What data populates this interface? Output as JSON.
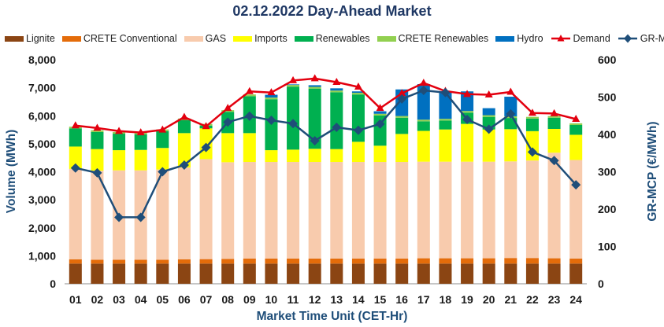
{
  "chart_data": {
    "type": "bar",
    "title": "02.12.2022  Day-Ahead Market",
    "xlabel": "Market Time Unit (CET-Hr)",
    "ylabel": "Volume (MWh)",
    "y2label": "GR-MCP (€/MWh)",
    "ylim": [
      0,
      8000
    ],
    "y2lim": [
      0,
      600
    ],
    "yticks": [
      "0",
      "1,000",
      "2,000",
      "3,000",
      "4,000",
      "5,000",
      "6,000",
      "7,000",
      "8,000"
    ],
    "y2ticks": [
      "0",
      "100",
      "200",
      "300",
      "400",
      "500",
      "600"
    ],
    "categories": [
      "01",
      "02",
      "03",
      "04",
      "05",
      "06",
      "07",
      "08",
      "09",
      "10",
      "11",
      "12",
      "13",
      "14",
      "15",
      "16",
      "17",
      "18",
      "19",
      "20",
      "21",
      "22",
      "23",
      "24"
    ],
    "series": [
      {
        "name": "Lignite",
        "kind": "bar",
        "color": "#8B4513",
        "values": [
          720,
          720,
          720,
          720,
          720,
          720,
          720,
          720,
          720,
          720,
          720,
          720,
          720,
          720,
          720,
          720,
          720,
          720,
          720,
          720,
          720,
          720,
          720,
          720
        ]
      },
      {
        "name": "CRETE Conventional",
        "kind": "bar",
        "color": "#E46C0A",
        "values": [
          150,
          140,
          140,
          140,
          140,
          150,
          160,
          170,
          180,
          180,
          180,
          180,
          180,
          180,
          180,
          180,
          190,
          190,
          190,
          190,
          200,
          200,
          190,
          180
        ]
      },
      {
        "name": "GAS",
        "kind": "bar",
        "color": "#F8CBAD",
        "values": [
          3230,
          3180,
          3190,
          3190,
          3220,
          3280,
          3570,
          3450,
          3450,
          3450,
          3450,
          3450,
          3450,
          3450,
          3450,
          3450,
          3450,
          3450,
          3450,
          3450,
          3450,
          3480,
          3770,
          3520
        ]
      },
      {
        "name": "Imports",
        "kind": "bar",
        "color": "#FFFF00",
        "values": [
          800,
          770,
          720,
          730,
          770,
          1230,
          1100,
          1040,
          1030,
          420,
          440,
          470,
          460,
          720,
          580,
          1000,
          1100,
          1150,
          1350,
          1150,
          1150,
          1050,
          850,
          900
        ]
      },
      {
        "name": "Renewables",
        "kind": "bar",
        "color": "#00B050",
        "values": [
          650,
          610,
          590,
          560,
          600,
          460,
          100,
          760,
          1320,
          1820,
          2250,
          2150,
          2030,
          1690,
          1080,
          580,
          340,
          320,
          400,
          450,
          400,
          450,
          400,
          350
        ]
      },
      {
        "name": "CRETE Renewables",
        "kind": "bar",
        "color": "#92D050",
        "values": [
          60,
          60,
          60,
          60,
          60,
          60,
          60,
          60,
          60,
          60,
          60,
          60,
          60,
          60,
          60,
          60,
          60,
          60,
          60,
          60,
          60,
          60,
          60,
          60
        ]
      },
      {
        "name": "Hydro",
        "kind": "bar",
        "color": "#0070C0",
        "values": [
          0,
          0,
          0,
          0,
          0,
          0,
          0,
          0,
          0,
          100,
          20,
          60,
          80,
          50,
          90,
          950,
          1270,
          950,
          700,
          250,
          700,
          0,
          0,
          0
        ]
      },
      {
        "name": "Demand",
        "kind": "line",
        "axis": "left",
        "color": "#E3000F",
        "marker": "triangle",
        "values": [
          5650,
          5560,
          5450,
          5400,
          5500,
          5950,
          5620,
          6270,
          6870,
          6830,
          7260,
          7330,
          7200,
          7030,
          6270,
          6800,
          7170,
          6880,
          6770,
          6750,
          6850,
          6100,
          6080,
          5880
        ]
      },
      {
        "name": "GR-MCP",
        "kind": "line",
        "axis": "right",
        "color": "#1F4E79",
        "marker": "diamond",
        "values": [
          310,
          297,
          178,
          178,
          300,
          318,
          365,
          433,
          449,
          438,
          429,
          383,
          419,
          411,
          428,
          495,
          518,
          512,
          440,
          414,
          455,
          353,
          330,
          265
        ]
      }
    ]
  }
}
